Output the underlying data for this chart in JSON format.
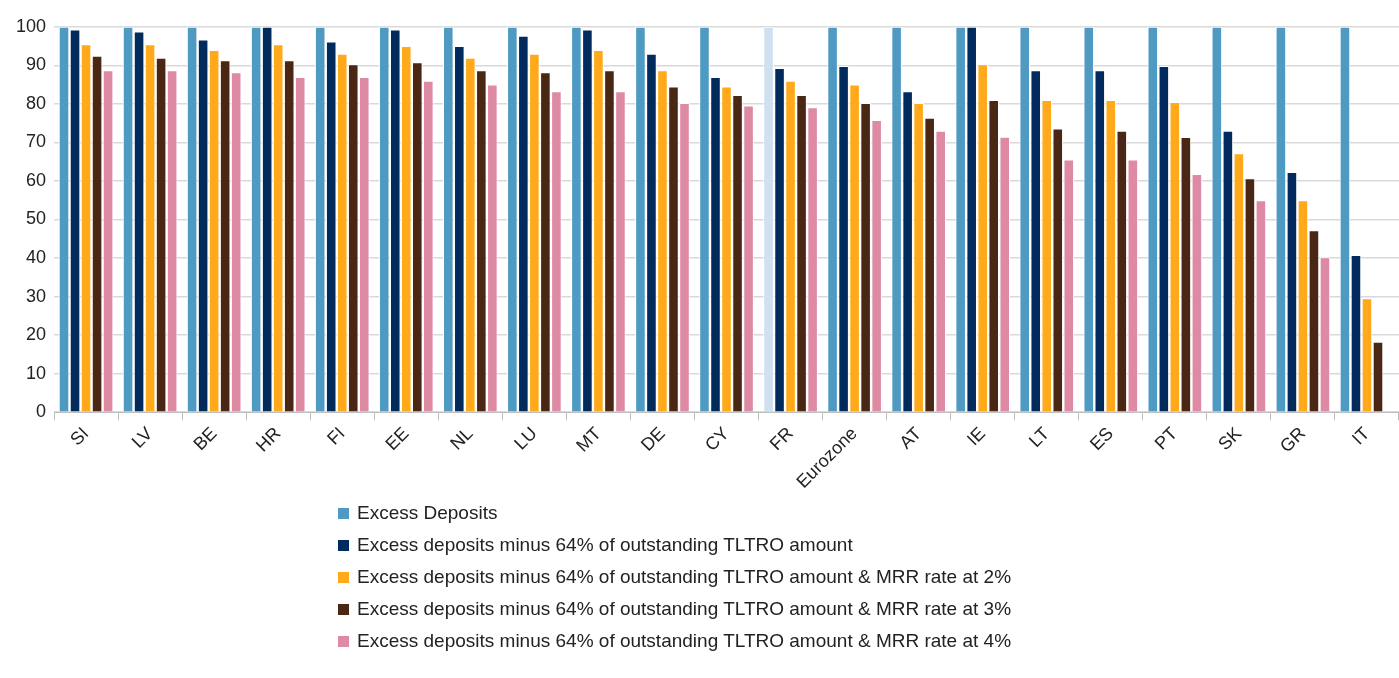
{
  "chart_data": {
    "type": "bar",
    "categories": [
      "SI",
      "LV",
      "BE",
      "HR",
      "FI",
      "EE",
      "NL",
      "LU",
      "MT",
      "DE",
      "CY",
      "FR",
      "Eurozone",
      "AT",
      "IE",
      "LT",
      "ES",
      "PT",
      "SK",
      "GR",
      "IT"
    ],
    "series": [
      {
        "name": "Excess Deposits",
        "color": "#4f9ac2",
        "colors": [
          "#4f9ac2",
          "#4f9ac2",
          "#4f9ac2",
          "#4f9ac2",
          "#4f9ac2",
          "#4f9ac2",
          "#4f9ac2",
          "#4f9ac2",
          "#4f9ac2",
          "#4f9ac2",
          "#4f9ac2",
          "#cfe0f0",
          "#4f9ac2",
          "#4f9ac2",
          "#4f9ac2",
          "#4f9ac2",
          "#4f9ac2",
          "#4f9ac2",
          "#4f9ac2",
          "#4f9ac2",
          "#4f9ac2"
        ],
        "values": [
          100,
          100,
          100,
          100,
          100,
          100,
          100,
          100,
          100,
          100,
          100,
          100,
          100,
          100,
          100,
          100,
          100,
          100,
          100,
          100,
          100
        ]
      },
      {
        "name": "Excess deposits minus 64% of outstanding TLTRO amount",
        "color": "#002b5c",
        "values": [
          99.3,
          98.8,
          96.7,
          100,
          96.2,
          99.3,
          95,
          97.7,
          99.3,
          93,
          87,
          89.3,
          89.8,
          83.3,
          100,
          88.7,
          88.7,
          89.8,
          73,
          62.3,
          40.8
        ]
      },
      {
        "name": "Excess deposits minus 64% of outstanding TLTRO amount & MRR rate at 2%",
        "color": "#ffa91b",
        "values": [
          95.5,
          95.5,
          94,
          95.5,
          93,
          95,
          92,
          93,
          94,
          88.7,
          84.5,
          86,
          85,
          80.2,
          90.3,
          81,
          81,
          80.5,
          67.2,
          55,
          29.6
        ]
      },
      {
        "name": "Excess deposits minus 64% of outstanding TLTRO amount & MRR rate at 3%",
        "color": "#4a2615",
        "values": [
          92.5,
          92,
          91.3,
          91.3,
          90.3,
          90.8,
          88.7,
          88.2,
          88.7,
          84.5,
          82.3,
          82.3,
          80.2,
          76.4,
          81,
          73.6,
          73,
          71.4,
          60.7,
          47.2,
          18.3
        ]
      },
      {
        "name": "Excess deposits minus 64% of outstanding TLTRO amount & MRR rate at 4%",
        "color": "#de8aa5",
        "values": [
          88.7,
          88.7,
          88.2,
          87,
          87,
          86,
          85,
          83.3,
          83.3,
          80.2,
          79.6,
          79.1,
          75.8,
          73,
          71.5,
          65.6,
          65.6,
          61.8,
          55,
          40.2,
          null
        ]
      }
    ],
    "ylim": [
      0,
      100
    ],
    "yticks": [
      0,
      10,
      20,
      30,
      40,
      50,
      60,
      70,
      80,
      90,
      100
    ],
    "grid": "y",
    "legend": "bottom"
  }
}
